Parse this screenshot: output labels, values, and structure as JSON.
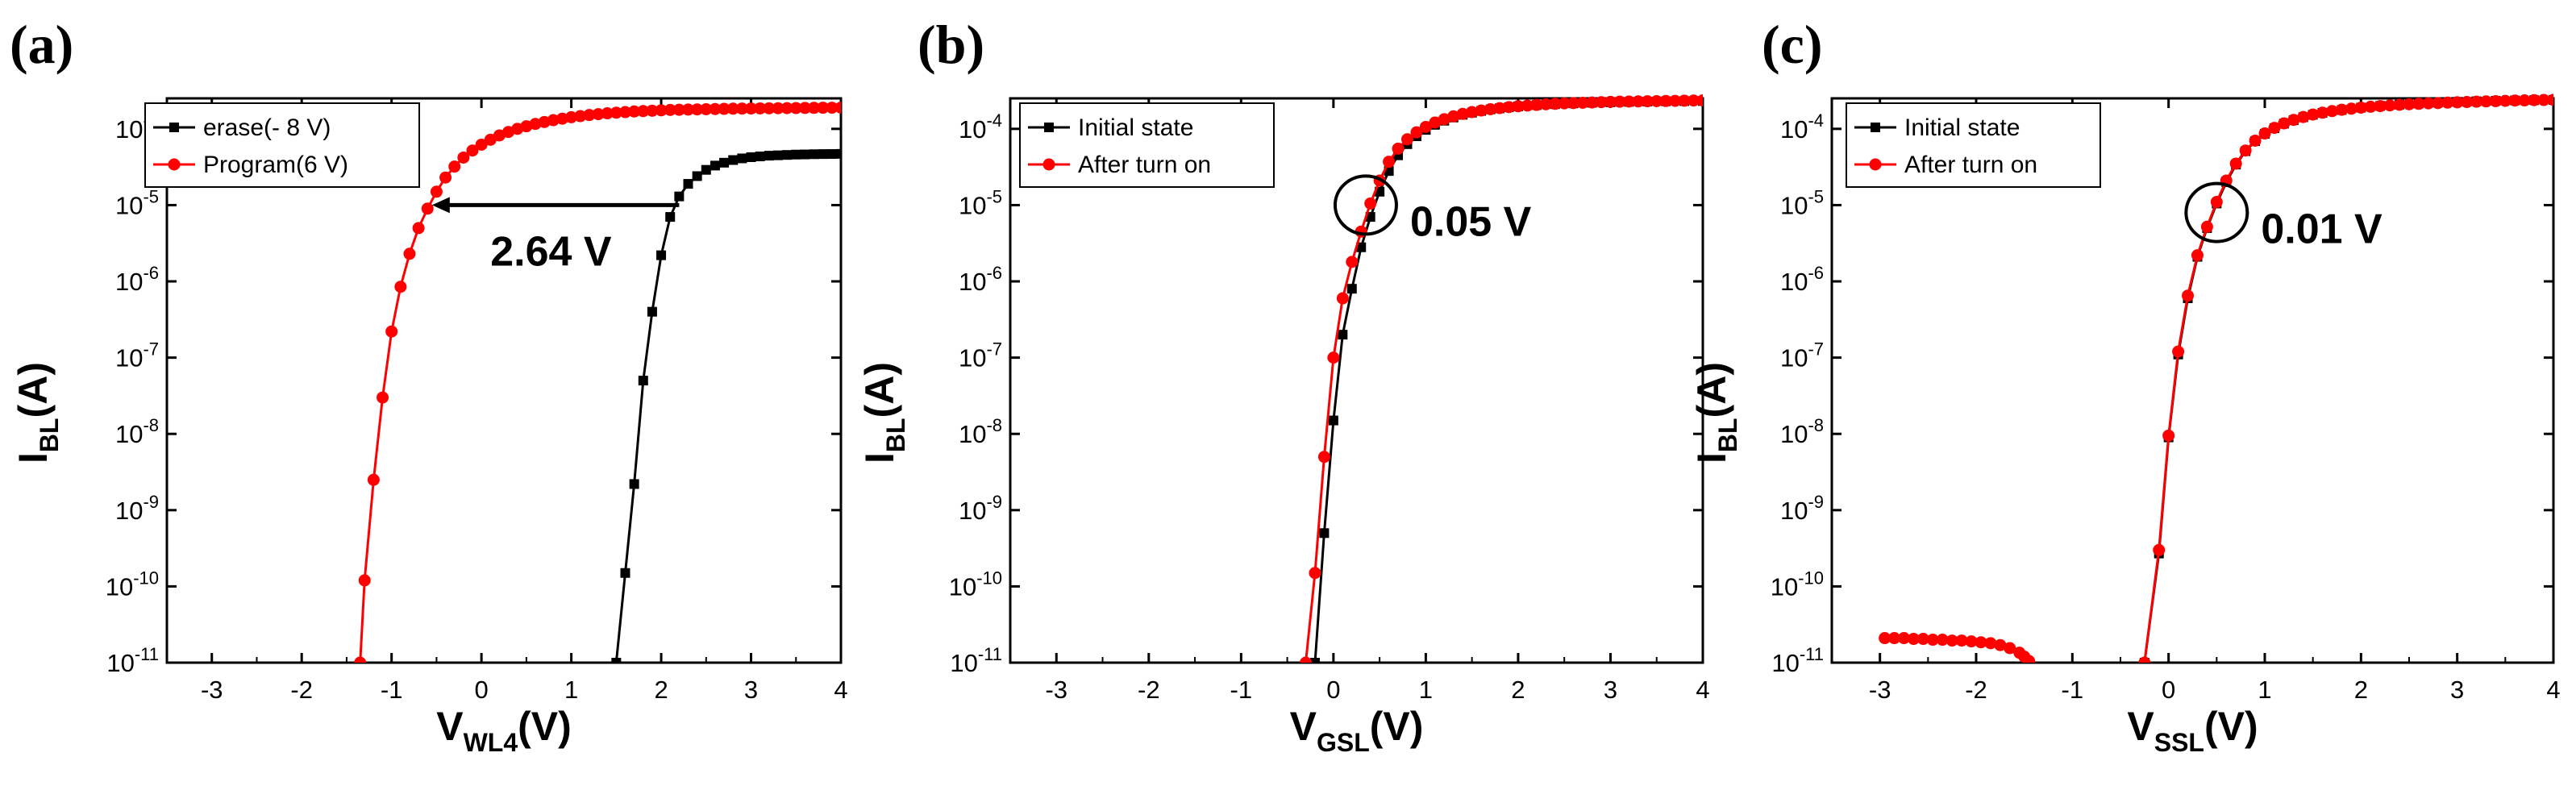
{
  "chart_data": [
    {
      "type": "line",
      "panel_label": "(a)",
      "ylabel_main": "I",
      "ylabel_sub": "BL",
      "ylabel_tail": "(A)",
      "xlabel_main": "V",
      "xlabel_sub": "WL4",
      "xlabel_tail": "(V)",
      "x_ticks": [
        -3,
        -2,
        -1,
        0,
        1,
        2,
        3,
        4
      ],
      "y_tick_exponents": [
        -11,
        -10,
        -9,
        -8,
        -7,
        -6,
        -5,
        -4
      ],
      "xlim": [
        -3.5,
        4
      ],
      "ylim_log10": [
        -11,
        -3.6
      ],
      "yscale": "log",
      "series": [
        {
          "name": "erase(- 8 V)",
          "color": "#000000",
          "marker": "square",
          "x": [
            1.5,
            1.6,
            1.7,
            1.8,
            1.9,
            2.0,
            2.1,
            2.2,
            2.3,
            2.4,
            2.5,
            2.6,
            2.7,
            2.8,
            2.9,
            3.0,
            3.1,
            3.2,
            3.3,
            3.4,
            3.5,
            3.6,
            3.7,
            3.8,
            3.9,
            4.0
          ],
          "y": [
            1e-11,
            1.5e-10,
            2.2e-09,
            5e-08,
            4e-07,
            2.2e-06,
            7e-06,
            1.3e-05,
            1.9e-05,
            2.4e-05,
            2.9e-05,
            3.3e-05,
            3.6e-05,
            3.9e-05,
            4.1e-05,
            4.25e-05,
            4.35e-05,
            4.45e-05,
            4.5e-05,
            4.55e-05,
            4.6e-05,
            4.62e-05,
            4.65e-05,
            4.67e-05,
            4.68e-05,
            4.7e-05
          ]
        },
        {
          "name": "Program(6 V)",
          "color": "#ff0000",
          "marker": "circle",
          "x": [
            -1.35,
            -1.3,
            -1.2,
            -1.1,
            -1.0,
            -0.9,
            -0.8,
            -0.7,
            -0.6,
            -0.5,
            -0.4,
            -0.3,
            -0.2,
            -0.1,
            0.0,
            0.1,
            0.2,
            0.3,
            0.4,
            0.5,
            0.6,
            0.7,
            0.8,
            0.9,
            1.0,
            1.1,
            1.2,
            1.3,
            1.4,
            1.5,
            1.6,
            1.7,
            1.8,
            1.9,
            2.0,
            2.1,
            2.2,
            2.3,
            2.4,
            2.5,
            2.6,
            2.7,
            2.8,
            2.9,
            3.0,
            3.1,
            3.2,
            3.3,
            3.4,
            3.5,
            3.6,
            3.7,
            3.8,
            3.9,
            4.0
          ],
          "y": [
            1e-11,
            1.2e-10,
            2.5e-09,
            3e-08,
            2.2e-07,
            8.5e-07,
            2.3e-06,
            5e-06,
            9e-06,
            1.5e-05,
            2.3e-05,
            3.2e-05,
            4.2e-05,
            5.2e-05,
            6.2e-05,
            7.2e-05,
            8.2e-05,
            9.1e-05,
            0.0001,
            0.000108,
            0.000116,
            0.000123,
            0.00013,
            0.000136,
            0.000142,
            0.000147,
            0.000152,
            0.000156,
            0.00016,
            0.000163,
            0.000166,
            0.000169,
            0.000171,
            0.000173,
            0.000175,
            0.000177,
            0.000178,
            0.000179,
            0.00018,
            0.000181,
            0.000182,
            0.000183,
            0.000184,
            0.0001845,
            0.000185,
            0.0001855,
            0.000186,
            0.0001865,
            0.000187,
            0.0001875,
            0.000188,
            0.0001885,
            0.000189,
            0.0001895,
            0.00019
          ]
        }
      ],
      "legend_position": "top-left",
      "annotation": {
        "text": "2.64 V",
        "arrow_from_x": 2.2,
        "arrow_to_x": -0.55,
        "arrow_y": 1e-05
      }
    },
    {
      "type": "line",
      "panel_label": "(b)",
      "ylabel_main": "I",
      "ylabel_sub": "BL",
      "ylabel_tail": "(A)",
      "xlabel_main": "V",
      "xlabel_sub": "GSL",
      "xlabel_tail": "(V)",
      "x_ticks": [
        -3,
        -2,
        -1,
        0,
        1,
        2,
        3,
        4
      ],
      "y_tick_exponents": [
        -11,
        -10,
        -9,
        -8,
        -7,
        -6,
        -5,
        -4
      ],
      "xlim": [
        -3.5,
        4
      ],
      "ylim_log10": [
        -11,
        -3.6
      ],
      "yscale": "log",
      "series": [
        {
          "name": "Initial state",
          "color": "#000000",
          "marker": "square",
          "x": [
            -0.2,
            -0.1,
            0.0,
            0.1,
            0.2,
            0.3,
            0.4,
            0.5,
            0.6,
            0.7,
            0.8,
            0.9,
            1.0,
            1.1,
            1.2,
            1.3,
            1.4,
            1.5,
            1.6,
            1.7,
            1.8,
            1.9,
            2.0,
            2.2,
            2.4,
            2.6,
            2.8,
            3.0,
            3.2,
            3.4,
            3.6,
            3.8,
            4.0
          ],
          "y": [
            1e-11,
            5e-10,
            1.5e-08,
            2e-07,
            8e-07,
            2.8e-06,
            7e-06,
            1.5e-05,
            2.8e-05,
            4.5e-05,
            6.3e-05,
            8e-05,
            9.7e-05,
            0.000113,
            0.000128,
            0.000141,
            0.000153,
            0.000163,
            0.000172,
            0.00018,
            0.000186,
            0.000192,
            0.000197,
            0.000205,
            0.000211,
            0.000216,
            0.00022,
            0.000223,
            0.000226,
            0.000228,
            0.00023,
            0.000231,
            0.000232
          ]
        },
        {
          "name": "After turn on",
          "color": "#ff0000",
          "marker": "circle",
          "x": [
            -0.3,
            -0.2,
            -0.1,
            0.0,
            0.1,
            0.2,
            0.3,
            0.4,
            0.5,
            0.6,
            0.7,
            0.8,
            0.9,
            1.0,
            1.1,
            1.2,
            1.3,
            1.4,
            1.5,
            1.6,
            1.7,
            1.8,
            1.9,
            2.0,
            2.1,
            2.2,
            2.3,
            2.4,
            2.5,
            2.6,
            2.7,
            2.8,
            2.9,
            3.0,
            3.1,
            3.2,
            3.3,
            3.4,
            3.5,
            3.6,
            3.7,
            3.8,
            3.9,
            4.0
          ],
          "y": [
            1e-11,
            1.5e-10,
            5e-09,
            1e-07,
            6e-07,
            1.8e-06,
            4.5e-06,
            1.05e-05,
            2.1e-05,
            3.7e-05,
            5.5e-05,
            7.3e-05,
            9e-05,
            0.000106,
            0.000121,
            0.000134,
            0.000146,
            0.000157,
            0.000166,
            0.000174,
            0.000181,
            0.000187,
            0.000193,
            0.000198,
            0.000202,
            0.000206,
            0.00021,
            0.000213,
            0.000216,
            0.000218,
            0.00022,
            0.000222,
            0.000224,
            0.000226,
            0.000227,
            0.000228,
            0.000229,
            0.00023,
            0.000231,
            0.000232,
            0.000233,
            0.000234,
            0.000235,
            0.000236
          ]
        }
      ],
      "legend_position": "top-left",
      "annotation": {
        "text": "0.05 V",
        "circle_x": 0.35,
        "circle_y": 1e-05
      }
    },
    {
      "type": "line",
      "panel_label": "(c)",
      "ylabel_main": "I",
      "ylabel_sub": "BL",
      "ylabel_tail": "(A)",
      "xlabel_main": "V",
      "xlabel_sub": "SSL",
      "xlabel_tail": "(V)",
      "x_ticks": [
        -3,
        -2,
        -1,
        0,
        1,
        2,
        3,
        4
      ],
      "y_tick_exponents": [
        -11,
        -10,
        -9,
        -8,
        -7,
        -6,
        -5,
        -4
      ],
      "xlim": [
        -3.5,
        4
      ],
      "ylim_log10": [
        -11,
        -3.6
      ],
      "yscale": "log",
      "series": [
        {
          "name": "Initial state",
          "color": "#000000",
          "marker": "square",
          "x": [
            -0.25,
            -0.1,
            0.0,
            0.1,
            0.2,
            0.3,
            0.4,
            0.5,
            0.6,
            0.7,
            0.8,
            0.9,
            1.0,
            1.1,
            1.2,
            1.3,
            1.4,
            1.5,
            1.6,
            1.8,
            2.0,
            2.2,
            2.4,
            2.6,
            2.8,
            3.0,
            3.2,
            3.4,
            3.6,
            3.8,
            4.0
          ],
          "y": [
            1e-11,
            2.7e-10,
            9e-09,
            1.1e-07,
            6e-07,
            2.1e-06,
            5e-06,
            1.05e-05,
            2e-05,
            3.4e-05,
            5.1e-05,
            6.9e-05,
            8.6e-05,
            0.000102,
            0.000117,
            0.00013,
            0.000142,
            0.000153,
            0.000162,
            0.000177,
            0.00019,
            0.0002,
            0.000208,
            0.000215,
            0.000221,
            0.000226,
            0.00023,
            0.000233,
            0.000236,
            0.000238,
            0.00024
          ]
        },
        {
          "name": "After turn on",
          "color": "#ff0000",
          "marker": "circle",
          "x": [
            -2.95,
            -2.85,
            -2.75,
            -2.65,
            -2.55,
            -2.45,
            -2.35,
            -2.25,
            -2.15,
            -2.05,
            -1.95,
            -1.85,
            -1.75,
            -1.65,
            -1.55,
            -1.5,
            -1.45,
            -0.25,
            -0.1,
            0.0,
            0.1,
            0.2,
            0.3,
            0.4,
            0.5,
            0.6,
            0.7,
            0.8,
            0.9,
            1.0,
            1.1,
            1.2,
            1.3,
            1.4,
            1.5,
            1.6,
            1.7,
            1.8,
            1.9,
            2.0,
            2.1,
            2.2,
            2.3,
            2.4,
            2.5,
            2.6,
            2.7,
            2.8,
            2.9,
            3.0,
            3.1,
            3.2,
            3.3,
            3.4,
            3.5,
            3.6,
            3.7,
            3.8,
            3.9,
            4.0
          ],
          "y": [
            2.1e-11,
            2.1e-11,
            2.1e-11,
            2.05e-11,
            2.05e-11,
            2e-11,
            2e-11,
            1.95e-11,
            1.95e-11,
            1.9e-11,
            1.85e-11,
            1.8e-11,
            1.7e-11,
            1.55e-11,
            1.35e-11,
            1.2e-11,
            1.05e-11,
            1e-11,
            3e-10,
            9.5e-09,
            1.2e-07,
            6.5e-07,
            2.2e-06,
            5.2e-06,
            1.1e-05,
            2.1e-05,
            3.5e-05,
            5.2e-05,
            7e-05,
            8.7e-05,
            0.000103,
            0.000118,
            0.000131,
            0.000143,
            0.000154,
            0.000163,
            0.000171,
            0.000178,
            0.000184,
            0.00019,
            0.000195,
            0.000199,
            0.000203,
            0.000207,
            0.00021,
            0.000213,
            0.000216,
            0.000218,
            0.000221,
            0.000223,
            0.000225,
            0.000227,
            0.000229,
            0.000231,
            0.000233,
            0.000235,
            0.000236,
            0.000238,
            0.000239,
            0.00024
          ]
        }
      ],
      "legend_position": "top-left",
      "annotation": {
        "text": "0.01 V",
        "circle_x": 0.5,
        "circle_y": 8e-06
      }
    }
  ]
}
